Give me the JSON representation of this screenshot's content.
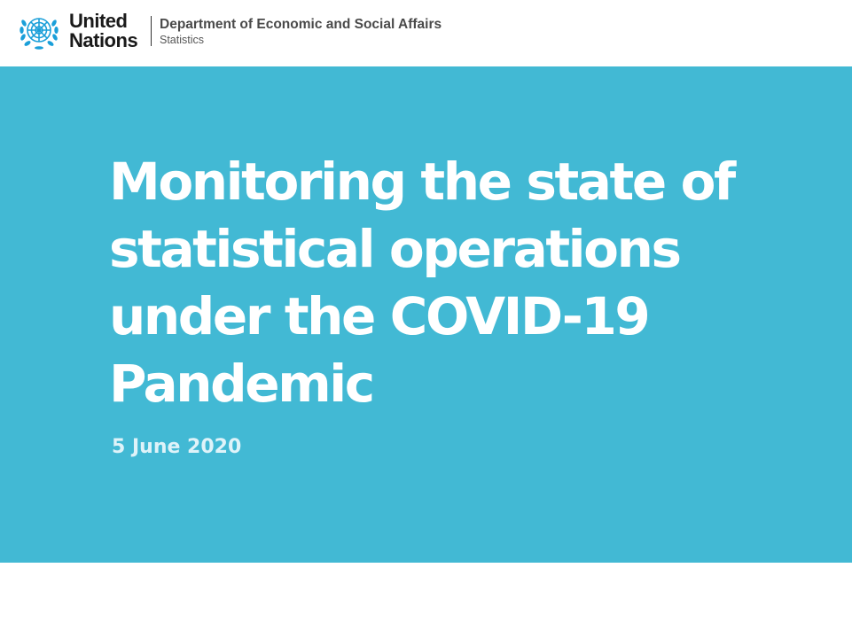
{
  "header": {
    "logo_line1": "United",
    "logo_line2": "Nations",
    "department": "Department of Economic and Social Affairs",
    "division": "Statistics",
    "emblem_icon": "un-emblem-icon",
    "emblem_color": "#1a9fd9"
  },
  "slide": {
    "title_lines": [
      "Monitoring the state of",
      "statistical operations",
      "under the COVID-19",
      "Pandemic"
    ],
    "date": "5 June 2020",
    "background_color": "#42b9d4",
    "text_color": "#ffffff"
  }
}
